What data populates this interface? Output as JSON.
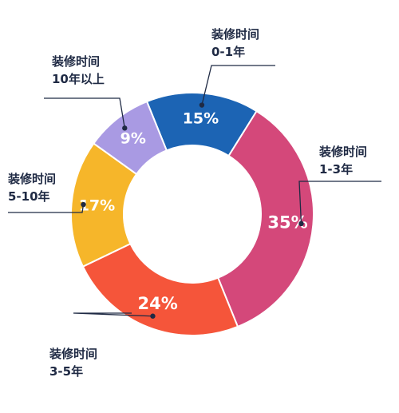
{
  "chart_data": {
    "type": "pie",
    "donut": true,
    "title": "",
    "categories": [
      {
        "line1": "装修时间",
        "line2": "0-1年"
      },
      {
        "line1": "装修时间",
        "line2": "1-3年"
      },
      {
        "line1": "装修时间",
        "line2": "3-5年"
      },
      {
        "line1": "装修时间",
        "line2": "5-10年"
      },
      {
        "line1": "装修时间",
        "line2": "10年以上"
      }
    ],
    "values": [
      15,
      35,
      24,
      17,
      9
    ],
    "value_labels": [
      "15%",
      "35%",
      "24%",
      "17%",
      "9%"
    ],
    "colors": [
      "#1c64b4",
      "#d4487a",
      "#f5553a",
      "#f6b62a",
      "#a99ae3"
    ],
    "legend": "none"
  }
}
